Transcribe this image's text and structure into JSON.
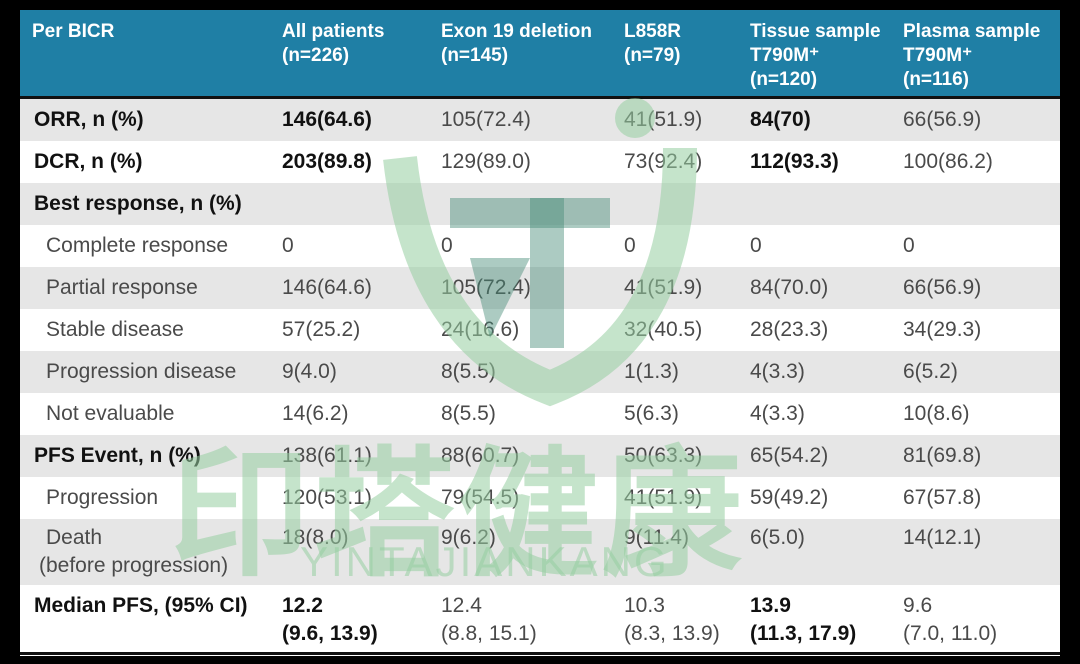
{
  "header": {
    "col0": "Per  BICR",
    "col1": [
      "All patients",
      "(n=226)"
    ],
    "col2": [
      "Exon 19 deletion",
      "(n=145)"
    ],
    "col3": [
      "L858R",
      "(n=79)"
    ],
    "col4": [
      "Tissue sample",
      "T790M⁺",
      "(n=120)"
    ],
    "col5": [
      "Plasma sample",
      "T790M⁺",
      "(n=116)"
    ]
  },
  "rows": [
    {
      "label": "ORR, n (%)",
      "values": [
        "146(64.6)",
        "105(72.4)",
        "41(51.9)",
        "84(70)",
        "66(56.9)"
      ]
    },
    {
      "label": "DCR, n (%)",
      "values": [
        "203(89.8)",
        "129(89.0)",
        "73(92.4)",
        "112(93.3)",
        "100(86.2)"
      ]
    },
    {
      "label": "Best response, n (%)",
      "values": [
        "",
        "",
        "",
        "",
        ""
      ]
    },
    {
      "label": "Complete response",
      "values": [
        "0",
        "0",
        "0",
        "0",
        "0"
      ]
    },
    {
      "label": "Partial response",
      "values": [
        "146(64.6)",
        "105(72.4)",
        "41(51.9)",
        "84(70.0)",
        "66(56.9)"
      ]
    },
    {
      "label": "Stable disease",
      "values": [
        "57(25.2)",
        "24(16.6)",
        "32(40.5)",
        "28(23.3)",
        "34(29.3)"
      ]
    },
    {
      "label": "Progression disease",
      "values": [
        "9(4.0)",
        "8(5.5)",
        "1(1.3)",
        "4(3.3)",
        "6(5.2)"
      ]
    },
    {
      "label": "Not evaluable",
      "values": [
        "14(6.2)",
        "8(5.5)",
        "5(6.3)",
        "4(3.3)",
        "10(8.6)"
      ]
    },
    {
      "label": "PFS Event, n (%)",
      "values": [
        "138(61.1)",
        "88(60.7)",
        "50(63.3)",
        "65(54.2)",
        "81(69.8)"
      ]
    },
    {
      "label": "Progression",
      "values": [
        "120(53.1)",
        "79(54.5)",
        "41(51.9)",
        "59(49.2)",
        "67(57.8)"
      ]
    },
    {
      "label": [
        "Death",
        "(before progression)"
      ],
      "values": [
        "18(8.0)",
        "9(6.2)",
        "9(11.4)",
        "6(5.0)",
        "14(12.1)"
      ]
    },
    {
      "label": "Median PFS, (95% CI)",
      "values": [
        [
          "12.2",
          "(9.6, 13.9)"
        ],
        [
          "12.4",
          "(8.8, 15.1)"
        ],
        [
          "10.3",
          "(8.3, 13.9)"
        ],
        [
          "13.9",
          "(11.3, 17.9)"
        ],
        [
          "9.6",
          "(7.0, 11.0)"
        ]
      ]
    }
  ],
  "watermark": {
    "chinese": "印塔健康",
    "latin": "YINTAJIANKANG"
  },
  "colors": {
    "header_bg": "#1f7fa5",
    "shade": "#e6e6e6",
    "frame": "#000000"
  }
}
